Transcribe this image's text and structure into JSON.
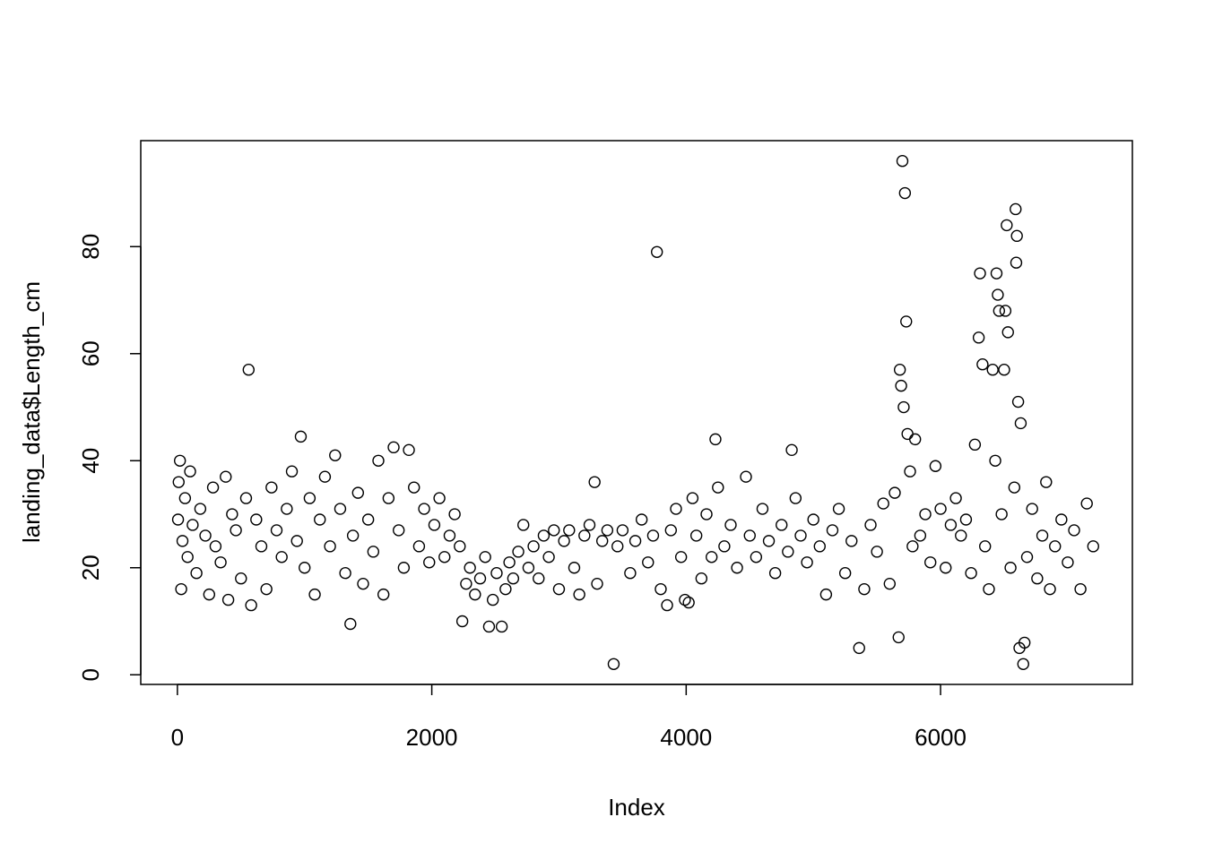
{
  "chart_data": {
    "type": "scatter",
    "x_label": "Index",
    "y_label": "landing_data$Length_cm",
    "color": "#000000",
    "xlim": [
      -288,
      7508
    ],
    "ylim": [
      -1.8,
      99.8
    ],
    "xticks": [
      0,
      2000,
      4000,
      6000
    ],
    "yticks": [
      0,
      20,
      40,
      60,
      80
    ],
    "x": [
      5,
      10,
      20,
      30,
      40,
      60,
      80,
      100,
      120,
      150,
      180,
      220,
      250,
      280,
      300,
      340,
      380,
      400,
      430,
      460,
      500,
      540,
      560,
      580,
      620,
      660,
      700,
      740,
      780,
      820,
      860,
      900,
      940,
      970,
      1000,
      1040,
      1080,
      1120,
      1160,
      1200,
      1240,
      1280,
      1320,
      1360,
      1380,
      1420,
      1460,
      1500,
      1540,
      1580,
      1620,
      1660,
      1700,
      1740,
      1780,
      1820,
      1860,
      1900,
      1940,
      1980,
      2020,
      2060,
      2100,
      2140,
      2180,
      2220,
      2240,
      2270,
      2300,
      2340,
      2380,
      2420,
      2450,
      2480,
      2510,
      2550,
      2580,
      2610,
      2640,
      2680,
      2720,
      2760,
      2800,
      2840,
      2880,
      2920,
      2960,
      3000,
      3040,
      3080,
      3120,
      3160,
      3200,
      3240,
      3280,
      3300,
      3340,
      3380,
      3430,
      3460,
      3500,
      3560,
      3600,
      3650,
      3700,
      3740,
      3770,
      3800,
      3850,
      3880,
      3920,
      3960,
      3990,
      4020,
      4050,
      4080,
      4120,
      4160,
      4200,
      4230,
      4250,
      4300,
      4350,
      4400,
      4470,
      4500,
      4550,
      4600,
      4650,
      4700,
      4750,
      4800,
      4830,
      4860,
      4900,
      4950,
      5000,
      5050,
      5100,
      5150,
      5200,
      5250,
      5300,
      5360,
      5400,
      5450,
      5500,
      5550,
      5600,
      5640,
      5670,
      5680,
      5690,
      5700,
      5710,
      5720,
      5730,
      5740,
      5760,
      5780,
      5800,
      5840,
      5880,
      5920,
      5960,
      6000,
      6040,
      6080,
      6120,
      6160,
      6200,
      6240,
      6270,
      6300,
      6310,
      6330,
      6350,
      6380,
      6410,
      6430,
      6440,
      6450,
      6460,
      6480,
      6500,
      6510,
      6520,
      6530,
      6550,
      6580,
      6590,
      6595,
      6600,
      6610,
      6620,
      6630,
      6650,
      6660,
      6680,
      6720,
      6760,
      6800,
      6830,
      6860,
      6900,
      6950,
      7000,
      7050,
      7100,
      7150,
      7200
    ],
    "values": [
      29,
      36,
      40,
      16,
      25,
      33,
      22,
      38,
      28,
      19,
      31,
      26,
      15,
      35,
      24,
      21,
      37,
      14,
      30,
      27,
      18,
      33,
      57,
      13,
      29,
      24,
      16,
      35,
      27,
      22,
      31,
      38,
      25,
      44.5,
      20,
      33,
      15,
      29,
      37,
      24,
      41,
      31,
      19,
      9.5,
      26,
      34,
      17,
      29,
      23,
      40,
      15,
      33,
      42.5,
      27,
      20,
      42,
      35,
      24,
      31,
      21,
      28,
      33,
      22,
      26,
      30,
      24,
      10,
      17,
      20,
      15,
      18,
      22,
      9,
      14,
      19,
      9,
      16,
      21,
      18,
      23,
      28,
      20,
      24,
      18,
      26,
      22,
      27,
      16,
      25,
      27,
      20,
      15,
      26,
      28,
      36,
      17,
      25,
      27,
      2,
      24,
      27,
      19,
      25,
      29,
      21,
      26,
      79,
      16,
      13,
      27,
      31,
      22,
      14,
      13.5,
      33,
      26,
      18,
      30,
      22,
      44,
      35,
      24,
      28,
      20,
      37,
      26,
      22,
      31,
      25,
      19,
      28,
      23,
      42,
      33,
      26,
      21,
      29,
      24,
      15,
      27,
      31,
      19,
      25,
      5,
      16,
      28,
      23,
      32,
      17,
      34,
      7,
      57,
      54,
      96,
      50,
      90,
      66,
      45,
      38,
      24,
      44,
      26,
      30,
      21,
      39,
      31,
      20,
      28,
      33,
      26,
      29,
      19,
      43,
      63,
      75,
      58,
      24,
      16,
      57,
      40,
      75,
      71,
      68,
      30,
      57,
      68,
      84,
      64,
      20,
      35,
      87,
      77,
      82,
      51,
      5,
      47,
      2,
      6,
      22,
      31,
      18,
      26,
      36,
      16,
      24,
      29,
      21,
      27,
      16,
      32,
      24
    ]
  }
}
